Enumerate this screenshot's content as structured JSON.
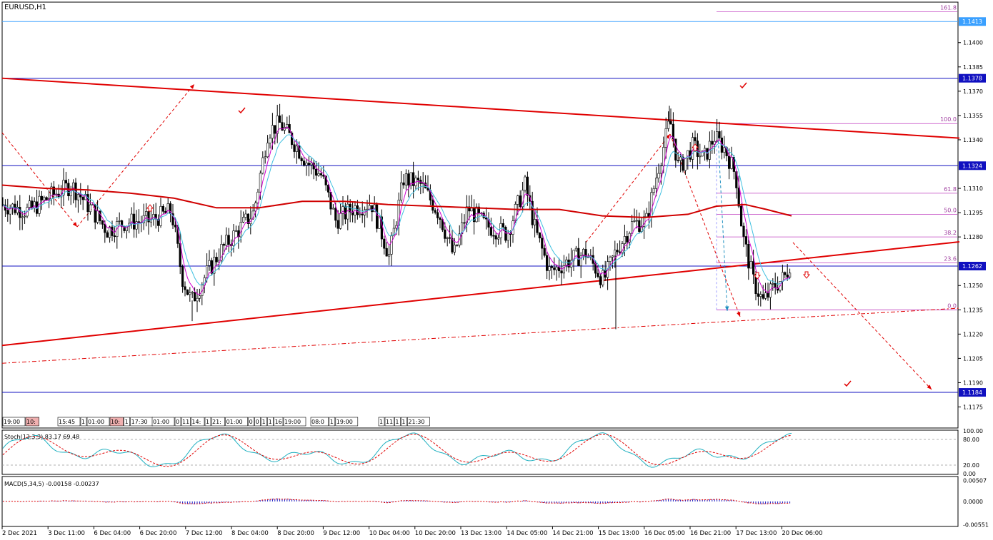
{
  "chart_data": {
    "type": "candlestick",
    "symbol_label": "EURUSD,H1",
    "price_range": [
      1.1162,
      1.1425
    ],
    "y_ticks": [
      "1.1413",
      "1.1400",
      "1.1385",
      "1.1378",
      "1.1370",
      "1.1355",
      "1.1340",
      "1.1324",
      "1.1310",
      "1.1295",
      "1.1280",
      "1.1262",
      "1.1250",
      "1.1235",
      "1.1220",
      "1.1205",
      "1.1190",
      "1.1184",
      "1.1175"
    ],
    "price_labels": [
      {
        "value": 1.1413,
        "text": "1.1413",
        "color": "#3aa0ff"
      },
      {
        "value": 1.1378,
        "text": "1.1378",
        "color": "#1010c0"
      },
      {
        "value": 1.1324,
        "text": "1.1324",
        "color": "#1010c0"
      },
      {
        "value": 1.1262,
        "text": "1.1262",
        "color": "#1010c0"
      },
      {
        "value": 1.1184,
        "text": "1.1184",
        "color": "#1010c0"
      }
    ],
    "horizontal_lines": [
      {
        "value": 1.1413,
        "color": "#3aa0ff"
      },
      {
        "value": 1.1378,
        "color": "#1010c0"
      },
      {
        "value": 1.1324,
        "color": "#1010c0"
      },
      {
        "value": 1.1262,
        "color": "#1010c0"
      },
      {
        "value": 1.1184,
        "color": "#1010c0"
      }
    ],
    "fibonacci": {
      "color": "#c040c0",
      "levels": [
        {
          "label": "161.8",
          "value": 1.1419
        },
        {
          "label": "100.0",
          "value": 1.135
        },
        {
          "label": "61.8",
          "value": 1.1307
        },
        {
          "label": "50.0",
          "value": 1.1294
        },
        {
          "label": "38.2",
          "value": 1.128
        },
        {
          "label": "23.6",
          "value": 1.1264
        },
        {
          "label": "0.0",
          "value": 1.1235
        }
      ]
    },
    "trendlines": [
      {
        "from": [
          0,
          1.1378
        ],
        "to": [
          1340,
          1.1341
        ],
        "color": "#e00000",
        "style": "solid"
      },
      {
        "from": [
          0,
          1.1213
        ],
        "to": [
          1340,
          1.1277
        ],
        "color": "#e00000",
        "style": "solid"
      },
      {
        "from": [
          0,
          1.1202
        ],
        "to": [
          1340,
          1.1236
        ],
        "color": "#e00000",
        "style": "dashdot"
      }
    ],
    "moving_average_red": [
      [
        0,
        1.1312
      ],
      [
        60,
        1.131
      ],
      [
        120,
        1.1309
      ],
      [
        180,
        1.1307
      ],
      [
        240,
        1.1304
      ],
      [
        300,
        1.1298
      ],
      [
        360,
        1.1298
      ],
      [
        420,
        1.1302
      ],
      [
        480,
        1.1302
      ],
      [
        540,
        1.13
      ],
      [
        600,
        1.1299
      ],
      [
        660,
        1.1298
      ],
      [
        720,
        1.1297
      ],
      [
        780,
        1.1297
      ],
      [
        840,
        1.1293
      ],
      [
        900,
        1.1292
      ],
      [
        960,
        1.1294
      ],
      [
        1000,
        1.1299
      ],
      [
        1040,
        1.13
      ],
      [
        1070,
        1.1297
      ],
      [
        1105,
        1.1293
      ]
    ],
    "moving_average_color": "#d00000",
    "x_labels": [
      "2 Dec 2021",
      "3 Dec 11:00",
      "6 Dec 04:00",
      "6 Dec 20:00",
      "7 Dec 12:00",
      "8 Dec 04:00",
      "8 Dec 20:00",
      "9 Dec 12:00",
      "10 Dec 04:00",
      "10 Dec 20:00",
      "13 Dec 13:00",
      "14 Dec 05:00",
      "14 Dec 21:00",
      "15 Dec 13:00",
      "16 Dec 05:00",
      "16 Dec 21:00",
      "17 Dec 13:00",
      "20 Dec 06:00"
    ],
    "time_markers": [
      "19:00",
      "10:",
      "15:45",
      "1",
      "01:00",
      "10:",
      "1",
      "17:30",
      "01:00",
      "0",
      "11",
      "14:",
      "1",
      "21:",
      "01:00",
      "0",
      "0",
      "1",
      "1",
      "16",
      "19:00",
      "08:0",
      "1",
      "19:00",
      "1",
      "11",
      "1",
      "1",
      "21:30"
    ],
    "stochastic": {
      "label": "Stoch(12,3,3) 83.17 69.48",
      "levels": [
        "100.00",
        "80.00",
        "20.00",
        "0.00"
      ]
    },
    "macd": {
      "label": "MACD(5,34,5) -0.00158 -0.00237",
      "levels": [
        "0.00507",
        "0.0000",
        "-0.00551"
      ]
    },
    "colors": {
      "bull": "#000000",
      "bear": "#000000",
      "ema_fast": "#d000d0",
      "ema_slow": "#40c0e0",
      "signal": "#e00000",
      "macd_hist": "#1010c0"
    }
  }
}
